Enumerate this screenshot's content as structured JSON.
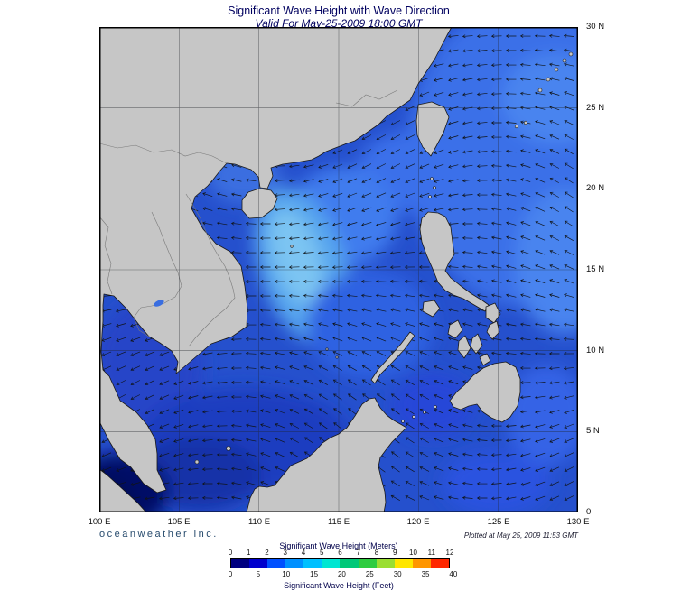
{
  "header": {
    "title": "Significant Wave Height with Wave Direction",
    "subtitle": "Valid For May-25-2009 18:00 GMT"
  },
  "map": {
    "lat_ticks": [
      "30 N",
      "25 N",
      "20 N",
      "15 N",
      "10 N",
      "5 N",
      "0"
    ],
    "lon_ticks": [
      "100 E",
      "105 E",
      "110 E",
      "115 E",
      "120 E",
      "125 E",
      "130 E"
    ]
  },
  "footer": {
    "branding": "oceanweather inc.",
    "plotted": "Plotted at May 25, 2009 11:53 GMT"
  },
  "legend": {
    "meters_label": "Significant Wave Height (Meters)",
    "feet_label": "Significant Wave Height (Feet)",
    "meters_ticks": [
      "0",
      "1",
      "2",
      "3",
      "4",
      "5",
      "6",
      "7",
      "8",
      "9",
      "10",
      "11",
      "12"
    ],
    "feet_ticks": [
      "0",
      "5",
      "10",
      "15",
      "20",
      "25",
      "30",
      "35",
      "40"
    ],
    "colors": [
      "#000080",
      "#0000cd",
      "#0050ff",
      "#0090ff",
      "#00c0ff",
      "#00e6d2",
      "#00c878",
      "#2ecc40",
      "#9ade32",
      "#ffe600",
      "#ff9600",
      "#ff2800"
    ]
  },
  "colors": {
    "land": "#c6c6c6",
    "sea_base": "#2550cd",
    "title_text": "#00005f"
  }
}
